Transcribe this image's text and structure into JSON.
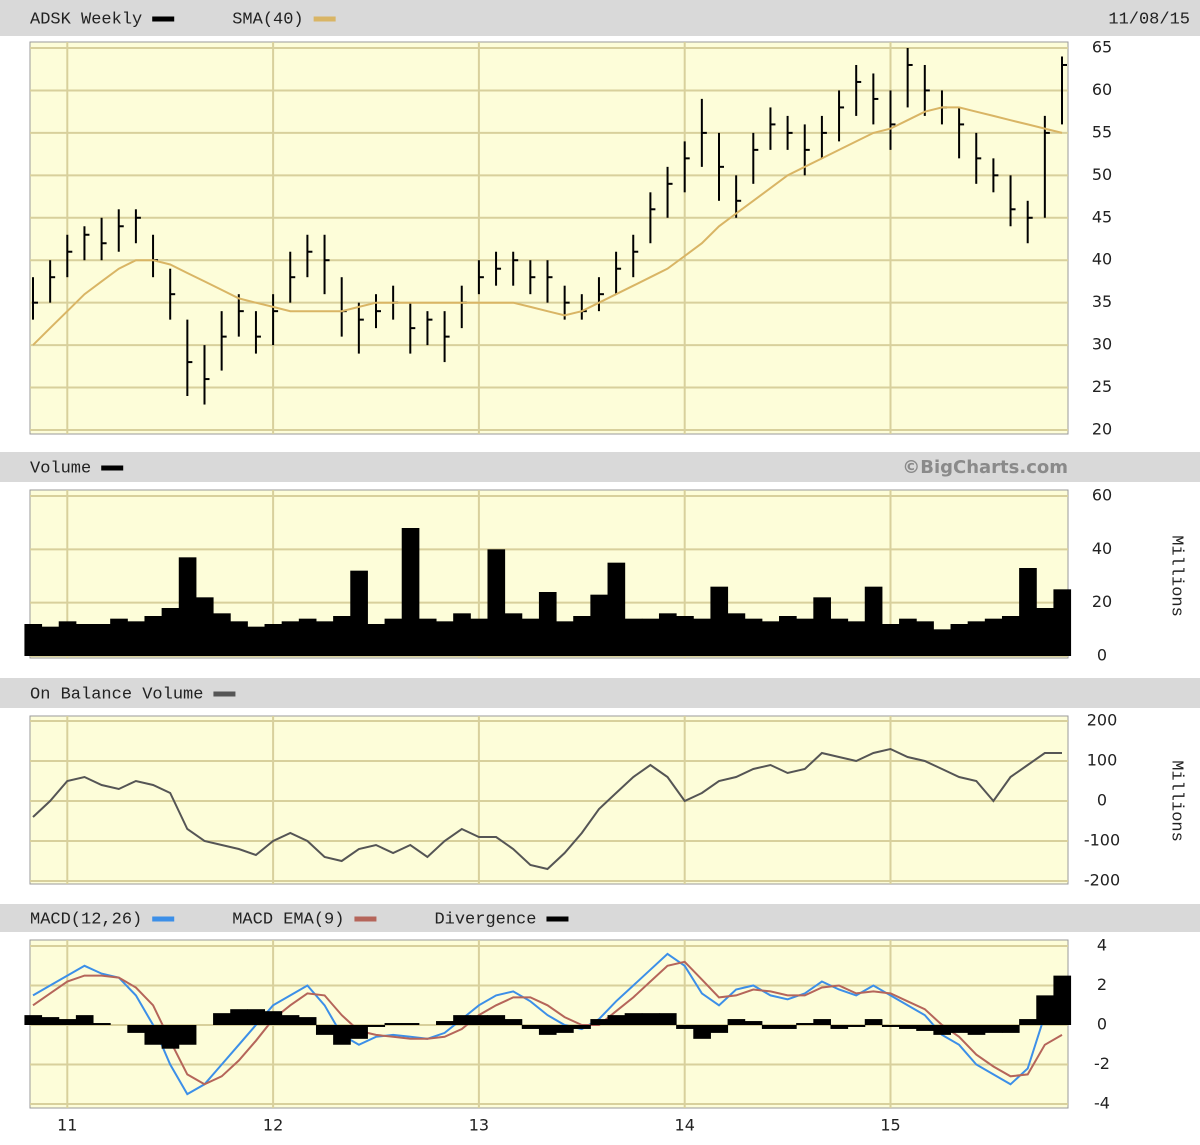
{
  "chart_data": [
    {
      "type": "ohlc",
      "date": "11/08/15",
      "series": [
        {
          "name": "ADSK Weekly",
          "color": "#000000",
          "high": [
            38,
            40,
            43,
            44,
            45,
            46,
            46,
            43,
            39,
            33,
            30,
            34,
            36,
            34,
            36,
            41,
            43,
            43,
            38,
            35,
            36,
            37,
            35,
            34,
            34,
            37,
            40,
            41,
            41,
            40,
            40,
            37,
            36,
            38,
            41,
            43,
            48,
            51,
            54,
            59,
            55,
            50,
            55,
            58,
            57,
            56,
            57,
            60,
            63,
            62,
            60,
            65,
            63,
            60,
            58,
            55,
            52,
            50,
            47,
            57,
            64
          ],
          "low": [
            33,
            35,
            38,
            40,
            40,
            41,
            42,
            38,
            33,
            24,
            23,
            27,
            31,
            29,
            30,
            35,
            38,
            36,
            31,
            29,
            32,
            33,
            29,
            30,
            28,
            32,
            36,
            37,
            37,
            36,
            35,
            33,
            33,
            34,
            36,
            38,
            42,
            45,
            48,
            51,
            47,
            45,
            49,
            53,
            53,
            50,
            52,
            54,
            57,
            56,
            53,
            58,
            57,
            56,
            52,
            49,
            48,
            44,
            42,
            45,
            56
          ],
          "values": [
            35,
            38,
            41,
            43,
            42,
            44,
            45,
            40,
            36,
            28,
            26,
            31,
            34,
            31,
            34,
            38,
            41,
            40,
            34,
            33,
            34,
            35,
            32,
            33,
            31,
            35,
            38,
            39,
            40,
            38,
            38,
            35,
            34,
            36,
            39,
            41,
            46,
            49,
            52,
            55,
            51,
            47,
            53,
            56,
            55,
            53,
            55,
            58,
            61,
            59,
            56,
            63,
            60,
            58,
            56,
            52,
            50,
            46,
            45,
            55,
            63
          ]
        },
        {
          "name": "SMA(40)",
          "color": "#d9b565",
          "values": [
            30,
            32,
            34,
            36,
            37.5,
            39,
            40,
            40,
            39.5,
            38.5,
            37.5,
            36.5,
            35.5,
            35,
            34.5,
            34,
            34,
            34,
            34,
            34.5,
            35,
            35,
            35,
            35,
            35,
            35,
            35,
            35,
            35,
            34.5,
            34,
            33.5,
            34,
            35,
            36,
            37,
            38,
            39,
            40.5,
            42,
            44,
            45.5,
            47,
            48.5,
            50,
            51,
            52,
            53,
            54,
            55,
            55.5,
            56.5,
            57.5,
            58,
            58,
            57.5,
            57,
            56.5,
            56,
            55.5,
            55
          ]
        }
      ],
      "ylim": [
        20,
        65
      ],
      "yticks": [
        20,
        25,
        30,
        35,
        40,
        45,
        50,
        55,
        60,
        65
      ],
      "grid": true
    },
    {
      "type": "bar",
      "annotation": "©BigCharts.com",
      "y_label": "Millions",
      "series": [
        {
          "name": "Volume",
          "color": "#000000",
          "values": [
            12,
            11,
            13,
            12,
            12,
            14,
            13,
            15,
            18,
            37,
            22,
            16,
            13,
            11,
            12,
            13,
            14,
            13,
            15,
            32,
            12,
            14,
            48,
            14,
            13,
            16,
            14,
            40,
            16,
            14,
            24,
            13,
            15,
            23,
            35,
            14,
            14,
            16,
            15,
            14,
            26,
            16,
            14,
            13,
            15,
            14,
            22,
            14,
            13,
            26,
            12,
            14,
            13,
            10,
            12,
            13,
            14,
            15,
            33,
            18,
            25
          ]
        }
      ],
      "ylim": [
        0,
        60
      ],
      "yticks": [
        0,
        20,
        40,
        60
      ],
      "grid": true
    },
    {
      "type": "line",
      "y_label": "Millions",
      "series": [
        {
          "name": "On Balance Volume",
          "color": "#555555",
          "values": [
            -40,
            0,
            50,
            60,
            40,
            30,
            50,
            40,
            20,
            -70,
            -100,
            -110,
            -120,
            -135,
            -100,
            -80,
            -100,
            -140,
            -150,
            -120,
            -110,
            -130,
            -110,
            -140,
            -100,
            -70,
            -90,
            -90,
            -120,
            -160,
            -170,
            -130,
            -80,
            -20,
            20,
            60,
            90,
            60,
            0,
            20,
            50,
            60,
            80,
            90,
            70,
            80,
            120,
            110,
            100,
            120,
            130,
            110,
            100,
            80,
            60,
            50,
            0,
            60,
            90,
            120,
            120
          ]
        }
      ],
      "ylim": [
        -200,
        200
      ],
      "yticks": [
        -200,
        -100,
        0,
        100,
        200
      ],
      "grid": true
    },
    {
      "type": "combo",
      "categories": [
        null,
        null,
        "11",
        null,
        null,
        null,
        null,
        null,
        null,
        null,
        null,
        null,
        null,
        null,
        "12",
        null,
        null,
        null,
        null,
        null,
        null,
        null,
        null,
        null,
        null,
        null,
        "13",
        null,
        null,
        null,
        null,
        null,
        null,
        null,
        null,
        null,
        null,
        null,
        "14",
        null,
        null,
        null,
        null,
        null,
        null,
        null,
        null,
        null,
        null,
        null,
        "15",
        null,
        null,
        null,
        null,
        null,
        null,
        null,
        null,
        null,
        null
      ],
      "series": [
        {
          "name": "MACD(12,26)",
          "color": "#3c8fe8",
          "style": "line",
          "values": [
            1.5,
            2,
            2.5,
            3,
            2.6,
            2.4,
            1.5,
            0,
            -2,
            -3.5,
            -3,
            -2,
            -1,
            0,
            1,
            1.5,
            2,
            1,
            -0.5,
            -1,
            -0.6,
            -0.5,
            -0.6,
            -0.7,
            -0.4,
            0.3,
            1,
            1.5,
            1.7,
            1.2,
            0.5,
            0,
            -0.2,
            0.3,
            1.2,
            2,
            2.8,
            3.6,
            3,
            1.6,
            1,
            1.8,
            2,
            1.5,
            1.3,
            1.6,
            2.2,
            1.8,
            1.5,
            2,
            1.5,
            1,
            0.5,
            -0.5,
            -1,
            -2,
            -2.5,
            -3,
            -2.2,
            0.5,
            2
          ]
        },
        {
          "name": "MACD EMA(9)",
          "color": "#b5655a",
          "style": "line",
          "values": [
            1,
            1.6,
            2.2,
            2.5,
            2.5,
            2.4,
            1.9,
            1,
            -0.8,
            -2.5,
            -3,
            -2.6,
            -1.8,
            -0.8,
            0.3,
            1,
            1.6,
            1.5,
            0.5,
            -0.3,
            -0.5,
            -0.6,
            -0.7,
            -0.7,
            -0.6,
            -0.2,
            0.5,
            1,
            1.4,
            1.4,
            1,
            0.4,
            0,
            0,
            0.7,
            1.4,
            2.2,
            3,
            3.2,
            2.3,
            1.4,
            1.5,
            1.8,
            1.7,
            1.5,
            1.5,
            1.9,
            2,
            1.6,
            1.7,
            1.6,
            1.2,
            0.8,
            0,
            -0.6,
            -1.5,
            -2.1,
            -2.6,
            -2.5,
            -1,
            -0.5
          ]
        },
        {
          "name": "Divergence",
          "color": "#000000",
          "style": "bar",
          "values": [
            0.5,
            0.4,
            0.3,
            0.5,
            0.1,
            0,
            -0.4,
            -1,
            -1.2,
            -1,
            0,
            0.6,
            0.8,
            0.8,
            0.7,
            0.5,
            0.4,
            -0.5,
            -1,
            -0.7,
            -0.1,
            0.1,
            0.1,
            0,
            0.2,
            0.5,
            0.5,
            0.5,
            0.3,
            -0.2,
            -0.5,
            -0.4,
            -0.2,
            0.3,
            0.5,
            0.6,
            0.6,
            0.6,
            -0.2,
            -0.7,
            -0.4,
            0.3,
            0.2,
            -0.2,
            -0.2,
            0.1,
            0.3,
            -0.2,
            -0.1,
            0.3,
            -0.1,
            -0.2,
            -0.3,
            -0.5,
            -0.4,
            -0.5,
            -0.4,
            -0.4,
            0.3,
            1.5,
            2.5
          ]
        }
      ],
      "ylim": [
        -4,
        4
      ],
      "yticks": [
        -4,
        -2,
        0,
        2,
        4
      ],
      "grid": true
    }
  ]
}
